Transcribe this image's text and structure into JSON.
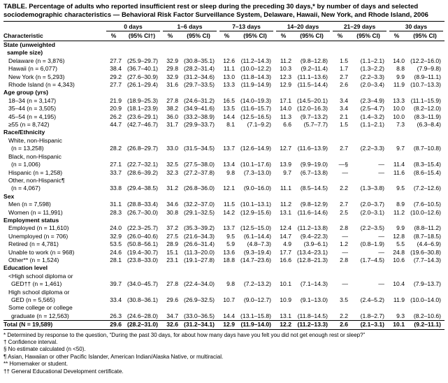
{
  "title": "TABLE. Percentage of adults who reported insufficient rest or sleep during the preceding 30 days,* by number of days and selected sociodemographic characteristics — Behavioral Risk Factor Surveillance System, Delaware, Hawaii, New York, and Rhode Island, 2006",
  "table": {
    "characteristic_header": "Characteristic",
    "groups": [
      {
        "label": "0 days",
        "pct": "%",
        "ci": "(95% CI†)"
      },
      {
        "label": "1–6 days",
        "pct": "%",
        "ci": "(95% CI)"
      },
      {
        "label": "7–13 days",
        "pct": "%",
        "ci": "(95% CI)"
      },
      {
        "label": "14–20 days",
        "pct": "%",
        "ci": "(95% CI)"
      },
      {
        "label": "21–29 days",
        "pct": "%",
        "ci": "(95% CI)"
      },
      {
        "label": "30 days",
        "pct": "%",
        "ci": "(95% CI)"
      }
    ],
    "rows": [
      {
        "style": "section",
        "lines": [
          "State (unweighted",
          "sample size)"
        ]
      },
      {
        "style": "item",
        "lines": [
          "Delaware (n = 3,876)"
        ],
        "values": [
          "27.7",
          "(25.9–29.7)",
          "32.9",
          "(30.8–35.1)",
          "12.6",
          "(11.2–14.3)",
          "11.2",
          "(9.8–12.8)",
          "1.5",
          "(1.1–2.1)",
          "14.0",
          "(12.2–16.0)"
        ]
      },
      {
        "style": "item",
        "lines": [
          "Hawaii (n = 6,077)"
        ],
        "values": [
          "38.4",
          "(36.7–40.1)",
          "29.8",
          "(28.2–31.4)",
          "11.1",
          "(10.0–12.2)",
          "10.3",
          "(9.2–11.4)",
          "1.7",
          "(1.3–2.2)",
          "8.8",
          "(7.9–9.8)"
        ]
      },
      {
        "style": "item",
        "lines": [
          "New York (n = 5,293)"
        ],
        "values": [
          "29.2",
          "(27.6–30.9)",
          "32.9",
          "(31.2–34.6)",
          "13.0",
          "(11.8–14.3)",
          "12.3",
          "(11.1–13.6)",
          "2.7",
          "(2.2–3.3)",
          "9.9",
          "(8.9–11.1)"
        ]
      },
      {
        "style": "item",
        "lines": [
          "Rhode Island (n = 4,343)"
        ],
        "values": [
          "27.7",
          "(26.1–29.4)",
          "31.6",
          "(29.7–33.5)",
          "13.3",
          "(11.9–14.9)",
          "12.9",
          "(11.5–14.4)",
          "2.6",
          "(2.0–3.4)",
          "11.9",
          "(10.7–13.3)"
        ]
      },
      {
        "style": "section",
        "lines": [
          "Age group (yrs)"
        ]
      },
      {
        "style": "item",
        "lines": [
          "18–34 (n = 3,147)"
        ],
        "values": [
          "21.9",
          "(18.9–25.3)",
          "27.8",
          "(24.6–31.2)",
          "16.5",
          "(14.0–19.3)",
          "17.1",
          "(14.5–20.1)",
          "3.4",
          "(2.3–4.9)",
          "13.3",
          "(11.1–15.9)"
        ]
      },
      {
        "style": "item",
        "lines": [
          "35–44 (n = 3,505)"
        ],
        "values": [
          "20.9",
          "(18.1–23.9)",
          "38.2",
          "(34.9–41.6)",
          "13.5",
          "(11.6–15.7)",
          "14.0",
          "(12.0–16.3)",
          "3.4",
          "(2.5–4.7)",
          "10.0",
          "(8.2–12.0)"
        ]
      },
      {
        "style": "item",
        "lines": [
          "45–54 (n = 4,195)"
        ],
        "values": [
          "26.2",
          "(23.6–29.1)",
          "36.0",
          "(33.2–38.9)",
          "14.4",
          "(12.5–16.5)",
          "11.3",
          "(9.7–13.2)",
          "2.1",
          "(1.4–3.2)",
          "10.0",
          "(8.3–11.9)"
        ]
      },
      {
        "style": "item",
        "lines": [
          "≥55 (n = 8,742)"
        ],
        "values": [
          "44.7",
          "(42.7–46.7)",
          "31.7",
          "(29.9–33.7)",
          "8.1",
          "(7.1–9.2)",
          "6.6",
          "(5.7–7.7)",
          "1.5",
          "(1.1–2.1)",
          "7.3",
          "(6.3–8.4)"
        ]
      },
      {
        "style": "section",
        "lines": [
          "Race/Ethnicity"
        ]
      },
      {
        "style": "item",
        "lines": [
          "White, non-Hispanic",
          "(n = 13,258)"
        ],
        "values": [
          "28.2",
          "(26.8–29.7)",
          "33.0",
          "(31.5–34.5)",
          "13.7",
          "(12.6–14.9)",
          "12.7",
          "(11.6–13.9)",
          "2.7",
          "(2.2–3.3)",
          "9.7",
          "(8.7–10.8)"
        ]
      },
      {
        "style": "item",
        "lines": [
          "Black, non-Hispanic",
          "(n = 1,006)"
        ],
        "values": [
          "27.1",
          "(22.7–32.1)",
          "32.5",
          "(27.5–38.0)",
          "13.4",
          "(10.1–17.6)",
          "13.9",
          "(9.9–19.0)",
          "—§",
          "—",
          "11.4",
          "(8.3–15.4)"
        ]
      },
      {
        "style": "item",
        "lines": [
          "Hispanic (n = 1,258)"
        ],
        "values": [
          "33.7",
          "(28.6–39.2)",
          "32.3",
          "(27.2–37.8)",
          "9.8",
          "(7.3–13.0)",
          "9.7",
          "(6.7–13.8)",
          "—",
          "—",
          "11.6",
          "(8.6–15.4)"
        ]
      },
      {
        "style": "item",
        "lines": [
          "Other, non-Hispanic¶",
          "(n = 4,067)"
        ],
        "values": [
          "33.8",
          "(29.4–38.5)",
          "31.2",
          "(26.8–36.0)",
          "12.1",
          "(9.0–16.0)",
          "11.1",
          "(8.5–14.5)",
          "2.2",
          "(1.3–3.8)",
          "9.5",
          "(7.2–12.6)"
        ]
      },
      {
        "style": "section",
        "lines": [
          "Sex"
        ]
      },
      {
        "style": "item",
        "lines": [
          "Men (n = 7,598)"
        ],
        "values": [
          "31.1",
          "(28.8–33.4)",
          "34.6",
          "(32.2–37.0)",
          "11.5",
          "(10.1–13.1)",
          "11.2",
          "(9.8–12.9)",
          "2.7",
          "(2.0–3.7)",
          "8.9",
          "(7.6–10.5)"
        ]
      },
      {
        "style": "item",
        "lines": [
          "Women (n = 11,991)"
        ],
        "values": [
          "28.3",
          "(26.7–30.0)",
          "30.8",
          "(29.1–32.5)",
          "14.2",
          "(12.9–15.6)",
          "13.1",
          "(11.6–14.6)",
          "2.5",
          "(2.0–3.1)",
          "11.2",
          "(10.0–12.6)"
        ]
      },
      {
        "style": "section",
        "lines": [
          "Employment status"
        ]
      },
      {
        "style": "item",
        "lines": [
          "Employed (n = 11,610)"
        ],
        "values": [
          "24.0",
          "(22.3–25.7)",
          "37.2",
          "(35.3–39.2)",
          "13.7",
          "(12.5–15.0)",
          "12.4",
          "(11.2–13.8)",
          "2.8",
          "(2.2–3.5)",
          "9.9",
          "(8.8–11.2)"
        ]
      },
      {
        "style": "item",
        "lines": [
          "Unemployed (n = 706)"
        ],
        "values": [
          "32.9",
          "(26.0–40.6)",
          "27.5",
          "(21.6–34.3)",
          "9.5",
          "(6.1–14.4)",
          "14.7",
          "(9.4–22.3)",
          "—",
          "—",
          "12.8",
          "(8.7–18.5)"
        ]
      },
      {
        "style": "item",
        "lines": [
          "Retired (n = 4,781)"
        ],
        "values": [
          "53.5",
          "(50.8–56.1)",
          "28.9",
          "(26.6–31.4)",
          "5.9",
          "(4.8–7.3)",
          "4.9",
          "(3.9–6.1)",
          "1.2",
          "(0.8–1.9)",
          "5.5",
          "(4.4–6.9)"
        ]
      },
      {
        "style": "item",
        "lines": [
          "Unable to work (n = 968)"
        ],
        "values": [
          "24.6",
          "(19.4–30.7)",
          "15.1",
          "(11.3–20.0)",
          "13.6",
          "(9.3–19.4)",
          "17.7",
          "(13.4–23.1)",
          "—",
          "—",
          "24.8",
          "(19.6–30.8)"
        ]
      },
      {
        "style": "item",
        "lines": [
          "Other** (n = 1,524)"
        ],
        "values": [
          "28.1",
          "(23.8–33.0)",
          "23.1",
          "(19.1–27.8)",
          "18.8",
          "(14.7–23.6)",
          "16.6",
          "(12.8–21.3)",
          "2.8",
          "(1.7–4.5)",
          "10.6",
          "(7.7–14.3)"
        ]
      },
      {
        "style": "section",
        "lines": [
          "Education level"
        ]
      },
      {
        "style": "item",
        "lines": [
          "<High school diploma or",
          "GED†† (n = 1,461)"
        ],
        "values": [
          "39.7",
          "(34.0–45.7)",
          "27.8",
          "(22.4–34.0)",
          "9.8",
          "(7.2–13.2)",
          "10.1",
          "(7.1–14.3)",
          "—",
          "—",
          "10.4",
          "(7.9–13.7)"
        ]
      },
      {
        "style": "item",
        "lines": [
          "High school diploma or",
          "GED (n = 5,565)"
        ],
        "values": [
          "33.4",
          "(30.8–36.1)",
          "29.6",
          "(26.9–32.5)",
          "10.7",
          "(9.0–12.7)",
          "10.9",
          "(9.1–13.0)",
          "3.5",
          "(2.4–5.2)",
          "11.9",
          "(10.0–14.0)"
        ]
      },
      {
        "style": "item",
        "lines": [
          "Some college or college",
          "graduate (n = 12,563)"
        ],
        "values": [
          "26.3",
          "(24.6–28.0)",
          "34.7",
          "(33.0–36.5)",
          "14.4",
          "(13.1–15.8)",
          "13.1",
          "(11.8–14.5)",
          "2.2",
          "(1.8–2.7)",
          "9.3",
          "(8.2–10.6)"
        ]
      },
      {
        "style": "total",
        "lines": [
          "Total (N = 19,589)"
        ],
        "values": [
          "29.6",
          "(28.2–31.0)",
          "32.6",
          "(31.2–34.1)",
          "12.9",
          "(11.9–14.0)",
          "12.2",
          "(11.2–13.3)",
          "2.6",
          "(2.1–3.1)",
          "10.1",
          "(9.2–11.1)"
        ]
      }
    ]
  },
  "footnotes": [
    "* Determined by response to the question, “During the past 30 days, for about how many days have you felt you did not get enough rest or sleep?”",
    "† Confidence interval.",
    "§ No estimate calculated (n <50).",
    "¶ Asian, Hawaiian or other Pacific Islander, American Indian/Alaska Native, or multiracial.",
    "** Homemaker or student.",
    "†† General Educational Development certificate."
  ]
}
